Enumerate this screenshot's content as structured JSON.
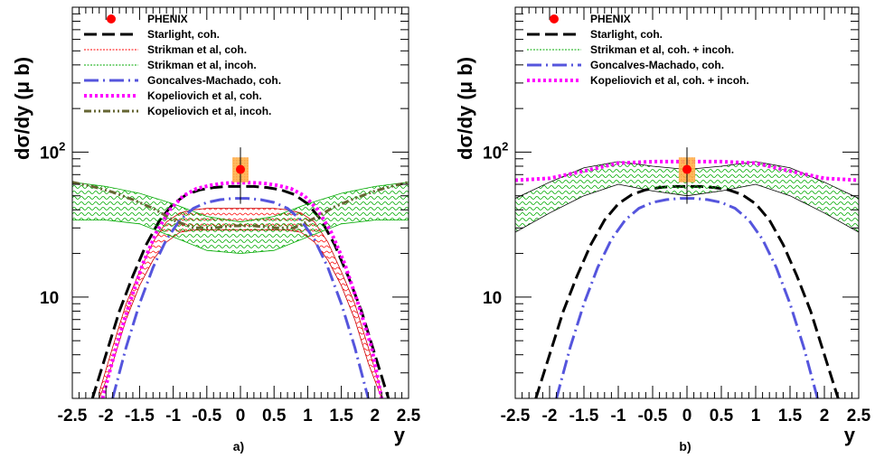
{
  "chart_data": [
    {
      "type": "line",
      "panel_label": "a)",
      "xlabel": "y",
      "ylabel": "dσ/dy (μ b)",
      "xlim": [
        -2.5,
        2.5
      ],
      "ylim": [
        2,
        1000
      ],
      "yscale": "log",
      "xticks": [
        "-2.5",
        "-2",
        "-1.5",
        "-1",
        "-0.5",
        "0",
        "0.5",
        "1",
        "1.5",
        "2",
        "2.5"
      ],
      "yticks": [
        {
          "value": 10,
          "label": "10"
        },
        {
          "value": 100,
          "label": "10",
          "sup": "2"
        }
      ],
      "legend_position": "top-right",
      "data_point": {
        "name": "PHENIX",
        "x": 0,
        "y": 76,
        "yerr": [
          32,
          32
        ],
        "box_x": [
          -0.12,
          0.12
        ],
        "box_y": [
          62,
          92
        ]
      },
      "series": [
        {
          "name": "Starlight, coh.",
          "color": "#000000",
          "style": "dashed",
          "x": [
            -2.2,
            -2.0,
            -1.8,
            -1.6,
            -1.4,
            -1.2,
            -1.0,
            -0.8,
            -0.6,
            -0.4,
            -0.2,
            0.0,
            0.2,
            0.4,
            0.6,
            0.8,
            1.0,
            1.2,
            1.4,
            1.6,
            1.8,
            2.0,
            2.2
          ],
          "y": [
            2.0,
            4.0,
            8.0,
            14.0,
            23.0,
            34.0,
            44.0,
            51.0,
            55.0,
            57.0,
            58.0,
            58.0,
            58.0,
            57.0,
            55.0,
            51.0,
            44.0,
            34.0,
            23.0,
            14.0,
            8.0,
            4.0,
            2.0
          ]
        },
        {
          "name": "Strikman et al, coh.",
          "color": "#ff0000",
          "style": "hatched-band",
          "x": [
            -2.1,
            -1.9,
            -1.7,
            -1.5,
            -1.3,
            -1.1,
            -0.9,
            -0.7,
            -0.5,
            -0.3,
            -0.1,
            0.1,
            0.3,
            0.5,
            0.7,
            0.9,
            1.1,
            1.3,
            1.5,
            1.7,
            1.9,
            2.1
          ],
          "y_low": [
            2.0,
            3.5,
            7.0,
            12.0,
            18.0,
            24.0,
            28.0,
            29.0,
            29.0,
            29.0,
            29.0,
            29.0,
            29.0,
            29.0,
            29.0,
            28.0,
            24.0,
            18.0,
            12.0,
            7.0,
            3.5,
            2.0
          ],
          "y_high": [
            2.2,
            4.5,
            9.0,
            15.0,
            24.0,
            33.0,
            38.0,
            40.0,
            41.0,
            41.0,
            41.0,
            41.0,
            41.0,
            41.0,
            40.0,
            38.0,
            33.0,
            24.0,
            15.0,
            9.0,
            4.5,
            2.2
          ]
        },
        {
          "name": "Strikman et al, incoh.",
          "color": "#00aa00",
          "style": "hatched-band",
          "x": [
            -2.5,
            -2.0,
            -1.5,
            -1.0,
            -0.5,
            0.0,
            0.5,
            1.0,
            1.5,
            2.0,
            2.5
          ],
          "y_low": [
            34.0,
            34.0,
            32.0,
            26.0,
            21.0,
            20.0,
            21.0,
            26.0,
            32.0,
            34.0,
            34.0
          ],
          "y_high": [
            62.0,
            58.0,
            52.0,
            44.0,
            36.0,
            33.0,
            36.0,
            44.0,
            52.0,
            58.0,
            62.0
          ]
        },
        {
          "name": "Goncalves-Machado, coh.",
          "color": "#5555dd",
          "style": "dashdot",
          "x": [
            -1.9,
            -1.7,
            -1.5,
            -1.3,
            -1.1,
            -0.9,
            -0.7,
            -0.5,
            -0.3,
            -0.1,
            0.1,
            0.3,
            0.5,
            0.7,
            0.9,
            1.1,
            1.3,
            1.5,
            1.7,
            1.9
          ],
          "y": [
            2.0,
            4.5,
            9.0,
            16.0,
            25.0,
            34.0,
            41.0,
            45.0,
            47.0,
            48.0,
            48.0,
            47.0,
            45.0,
            41.0,
            34.0,
            25.0,
            16.0,
            9.0,
            4.5,
            2.0
          ]
        },
        {
          "name": "Kopeliovich et al, coh.",
          "color": "#ff00ff",
          "style": "dotted",
          "x": [
            -2.05,
            -1.85,
            -1.65,
            -1.45,
            -1.25,
            -1.05,
            -0.85,
            -0.65,
            -0.45,
            -0.25,
            -0.05,
            0.15,
            0.35,
            0.55,
            0.75,
            0.95,
            1.15,
            1.35,
            1.55,
            1.75,
            1.95,
            2.1
          ],
          "y": [
            2.0,
            4.5,
            9.0,
            17.0,
            28.0,
            40.0,
            50.0,
            56.0,
            59.0,
            61.0,
            61.5,
            61.5,
            61.0,
            59.0,
            56.0,
            50.0,
            40.0,
            28.0,
            17.0,
            9.0,
            4.5,
            2.0
          ]
        },
        {
          "name": "Kopeliovich et al, incoh.",
          "color": "#666633",
          "style": "dashdotdot",
          "x": [
            -2.5,
            -2.2,
            -1.9,
            -1.6,
            -1.3,
            -1.0,
            -0.7,
            -0.4,
            -0.1,
            0.2,
            0.5,
            0.8,
            1.1,
            1.4,
            1.7,
            2.0,
            2.3,
            2.5
          ],
          "y": [
            62.0,
            58.0,
            53.0,
            47.0,
            41.0,
            34.0,
            30.0,
            30.0,
            31.0,
            31.0,
            30.0,
            30.0,
            35.0,
            42.0,
            48.0,
            54.0,
            59.0,
            62.0
          ]
        }
      ]
    },
    {
      "type": "line",
      "panel_label": "b)",
      "xlabel": "y",
      "ylabel": "dσ/dy (μ b)",
      "xlim": [
        -2.5,
        2.5
      ],
      "ylim": [
        2,
        1000
      ],
      "yscale": "log",
      "xticks": [
        "-2.5",
        "-2",
        "-1.5",
        "-1",
        "-0.5",
        "0",
        "0.5",
        "1",
        "1.5",
        "2",
        "2.5"
      ],
      "yticks": [
        {
          "value": 10,
          "label": "10"
        },
        {
          "value": 100,
          "label": "10",
          "sup": "2"
        }
      ],
      "legend_position": "top-right",
      "data_point": {
        "name": "PHENIX",
        "x": 0,
        "y": 76,
        "yerr": [
          32,
          32
        ],
        "box_x": [
          -0.12,
          0.12
        ],
        "box_y": [
          62,
          92
        ]
      },
      "series": [
        {
          "name": "Starlight, coh.",
          "color": "#000000",
          "style": "dashed",
          "x": [
            -2.2,
            -2.0,
            -1.8,
            -1.6,
            -1.4,
            -1.2,
            -1.0,
            -0.8,
            -0.6,
            -0.4,
            -0.2,
            0.0,
            0.2,
            0.4,
            0.6,
            0.8,
            1.0,
            1.2,
            1.4,
            1.6,
            1.8,
            2.0,
            2.2
          ],
          "y": [
            2.0,
            4.0,
            8.0,
            14.0,
            23.0,
            34.0,
            44.0,
            51.0,
            55.0,
            57.0,
            58.0,
            58.0,
            58.0,
            57.0,
            55.0,
            51.0,
            44.0,
            34.0,
            23.0,
            14.0,
            8.0,
            4.0,
            2.0
          ]
        },
        {
          "name": "Strikman et al, coh. + incoh.",
          "color": "#00aa00",
          "style": "hatched-band",
          "x": [
            -2.5,
            -2.0,
            -1.5,
            -1.0,
            -0.5,
            0.0,
            0.5,
            1.0,
            1.5,
            2.0,
            2.5
          ],
          "y_low": [
            28.0,
            38.0,
            50.0,
            60.0,
            54.0,
            50.0,
            54.0,
            60.0,
            50.0,
            38.0,
            28.0
          ],
          "y_high": [
            48.0,
            62.0,
            78.0,
            86.0,
            80.0,
            76.0,
            80.0,
            86.0,
            78.0,
            62.0,
            48.0
          ]
        },
        {
          "name": "Goncalves-Machado, coh.",
          "color": "#5555dd",
          "style": "dashdot",
          "x": [
            -1.9,
            -1.7,
            -1.5,
            -1.3,
            -1.1,
            -0.9,
            -0.7,
            -0.5,
            -0.3,
            -0.1,
            0.1,
            0.3,
            0.5,
            0.7,
            0.9,
            1.1,
            1.3,
            1.5,
            1.7,
            1.9
          ],
          "y": [
            2.0,
            4.5,
            9.0,
            16.0,
            25.0,
            34.0,
            41.0,
            45.0,
            47.0,
            48.0,
            48.0,
            47.0,
            45.0,
            41.0,
            34.0,
            25.0,
            16.0,
            9.0,
            4.5,
            2.0
          ]
        },
        {
          "name": "Kopeliovich et al, coh. + incoh.",
          "color": "#ff00ff",
          "style": "dotted",
          "x": [
            -2.5,
            -2.0,
            -1.5,
            -1.0,
            -0.5,
            0.0,
            0.5,
            1.0,
            1.5,
            2.0,
            2.5
          ],
          "y": [
            64.0,
            66.0,
            74.0,
            84.0,
            86.0,
            86.0,
            86.0,
            84.0,
            74.0,
            66.0,
            64.0
          ]
        }
      ]
    }
  ]
}
